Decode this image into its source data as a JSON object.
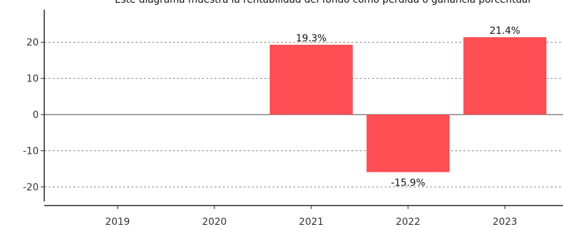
{
  "chart_data": {
    "type": "bar",
    "title": "Este diagrama muestra la rentabilidad del fondo como pérdida o ganancia porcentual",
    "categories": [
      "2019",
      "2020",
      "2021",
      "2022",
      "2023"
    ],
    "series": [
      {
        "values": [
          null,
          null,
          19.3,
          -15.9,
          21.4
        ],
        "color": "#ff4f55"
      }
    ],
    "data_labels": [
      "",
      "",
      "19.3%",
      "-15.9%",
      "21.4%"
    ],
    "y_ticks": [
      20,
      10,
      0,
      -10,
      -20
    ],
    "ylim": [
      -24,
      29
    ],
    "grid": true,
    "grid_style": "dashed-horizontal"
  }
}
